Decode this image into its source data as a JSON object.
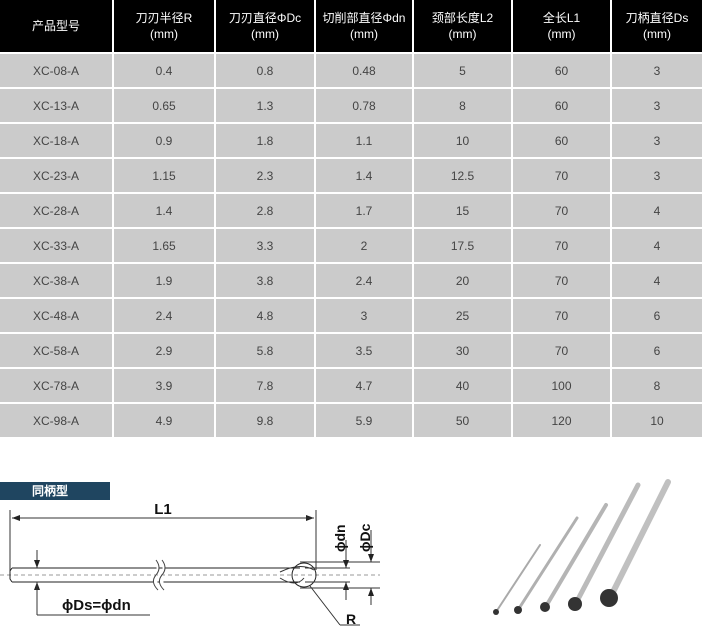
{
  "table": {
    "headers": [
      [
        "产品型号",
        ""
      ],
      [
        "刀刃半径R",
        "(mm)"
      ],
      [
        "刀刃直径ΦDc",
        "(mm)"
      ],
      [
        "切削部直径Φdn",
        "(mm)"
      ],
      [
        "颈部长度L2",
        "(mm)"
      ],
      [
        "全长L1",
        "(mm)"
      ],
      [
        "刀柄直径Ds",
        "(mm)"
      ]
    ],
    "rows": [
      [
        "XC-08-A",
        "0.4",
        "0.8",
        "0.48",
        "5",
        "60",
        "3"
      ],
      [
        "XC-13-A",
        "0.65",
        "1.3",
        "0.78",
        "8",
        "60",
        "3"
      ],
      [
        "XC-18-A",
        "0.9",
        "1.8",
        "1.1",
        "10",
        "60",
        "3"
      ],
      [
        "XC-23-A",
        "1.15",
        "2.3",
        "1.4",
        "12.5",
        "70",
        "3"
      ],
      [
        "XC-28-A",
        "1.4",
        "2.8",
        "1.7",
        "15",
        "70",
        "4"
      ],
      [
        "XC-33-A",
        "1.65",
        "3.3",
        "2",
        "17.5",
        "70",
        "4"
      ],
      [
        "XC-38-A",
        "1.9",
        "3.8",
        "2.4",
        "20",
        "70",
        "4"
      ],
      [
        "XC-48-A",
        "2.4",
        "4.8",
        "3",
        "25",
        "70",
        "6"
      ],
      [
        "XC-58-A",
        "2.9",
        "5.8",
        "3.5",
        "30",
        "70",
        "6"
      ],
      [
        "XC-78-A",
        "3.9",
        "7.8",
        "4.7",
        "40",
        "100",
        "8"
      ],
      [
        "XC-98-A",
        "4.9",
        "9.8",
        "5.9",
        "50",
        "120",
        "10"
      ]
    ]
  },
  "diagram": {
    "banner": "同柄型",
    "l1": "L1",
    "dn": "ϕdn",
    "dc": "ϕDc",
    "ds": "ϕDs=ϕdn",
    "r": "R"
  },
  "colors": {
    "header_bg": "#000000",
    "row_bg": "#cbcbcb",
    "banner_bg": "#1f4560"
  }
}
